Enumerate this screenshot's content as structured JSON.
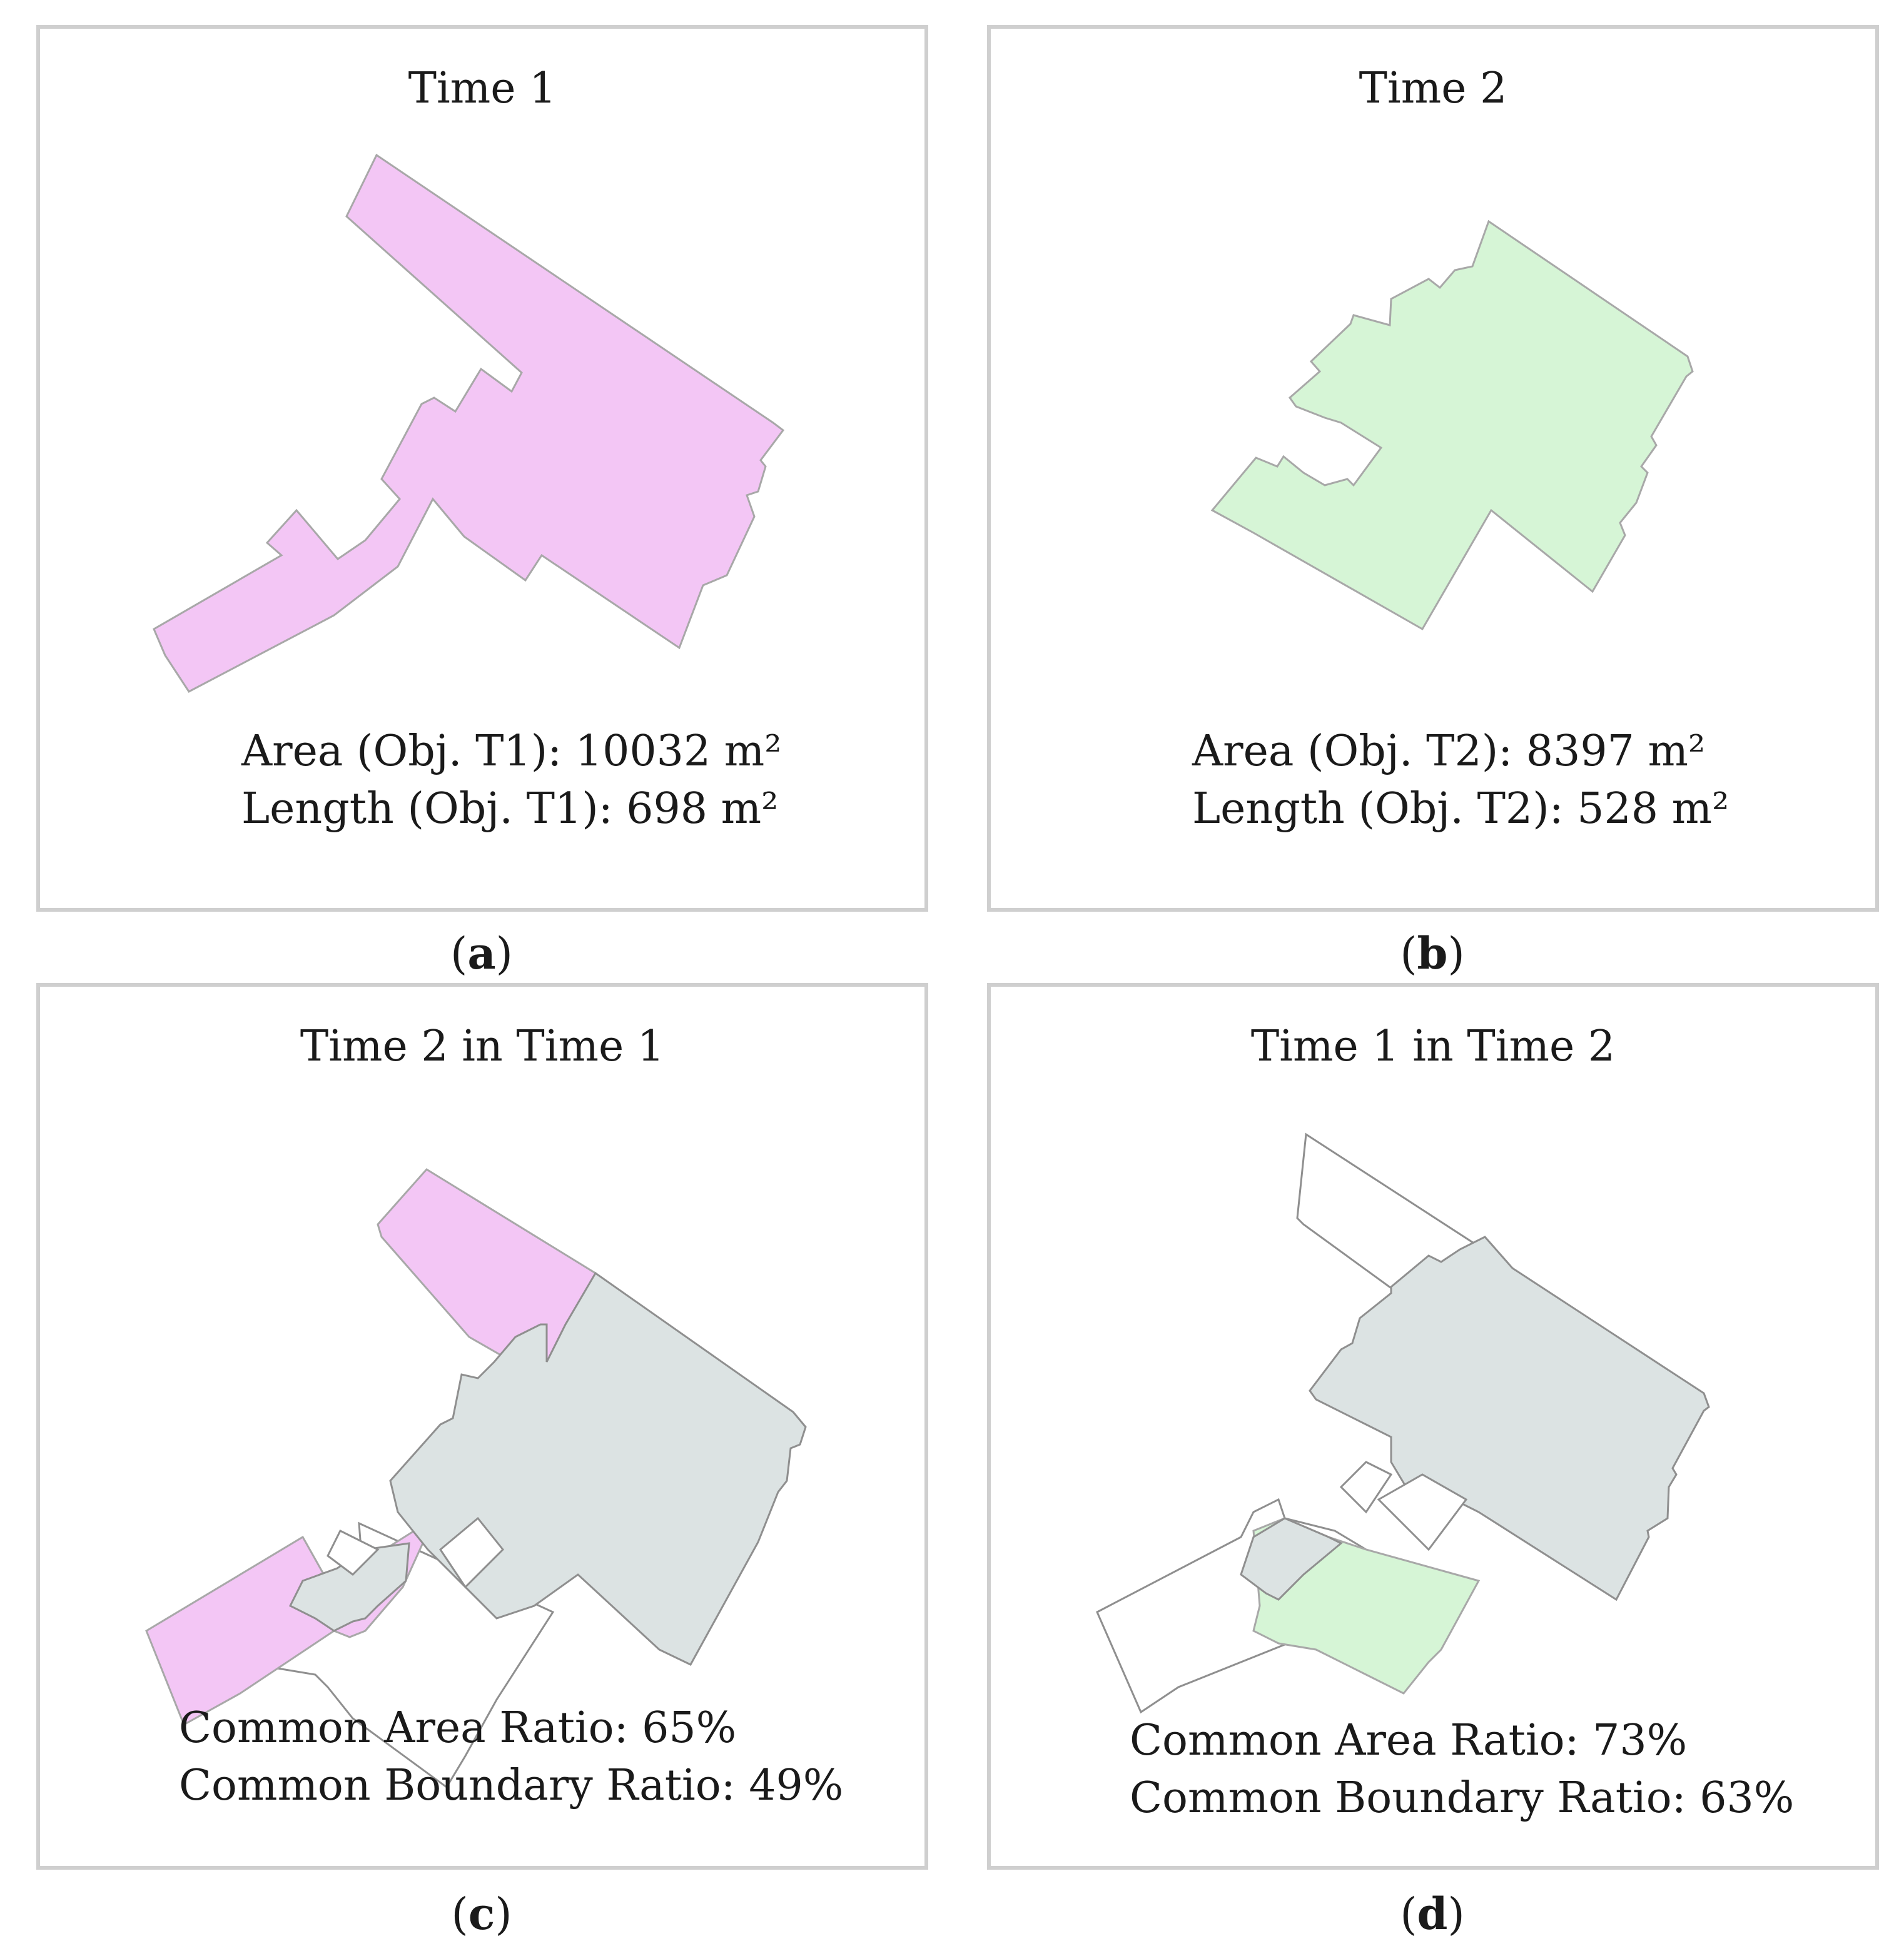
{
  "figure": {
    "panels": [
      {
        "id": "a",
        "title": "Time 1",
        "lines": [
          "Area (Obj. T1): 10032 m²",
          "Length (Obj. T1): 698 m²"
        ],
        "caption_letter": "a",
        "fill": "#f3c6f5"
      },
      {
        "id": "b",
        "title": "Time 2",
        "lines": [
          "Area (Obj. T2): 8397 m²",
          "Length (Obj. T2): 528 m²"
        ],
        "caption_letter": "b",
        "fill": "#d6f5d6"
      },
      {
        "id": "c",
        "title": "Time 2 in Time 1",
        "lines": [
          "Common Area Ratio: 65%",
          "Common Boundary Ratio: 49%"
        ],
        "caption_letter": "c",
        "fill": "#f3c6f5",
        "overlap_fill": "#dce3e3"
      },
      {
        "id": "d",
        "title": "Time 1 in Time 2",
        "lines": [
          "Common Area Ratio: 73%",
          "Common Boundary Ratio: 63%"
        ],
        "caption_letter": "d",
        "fill": "#d6f5d6",
        "overlap_fill": "#dce3e3"
      }
    ],
    "paren_open": "(",
    "paren_close": ")"
  }
}
